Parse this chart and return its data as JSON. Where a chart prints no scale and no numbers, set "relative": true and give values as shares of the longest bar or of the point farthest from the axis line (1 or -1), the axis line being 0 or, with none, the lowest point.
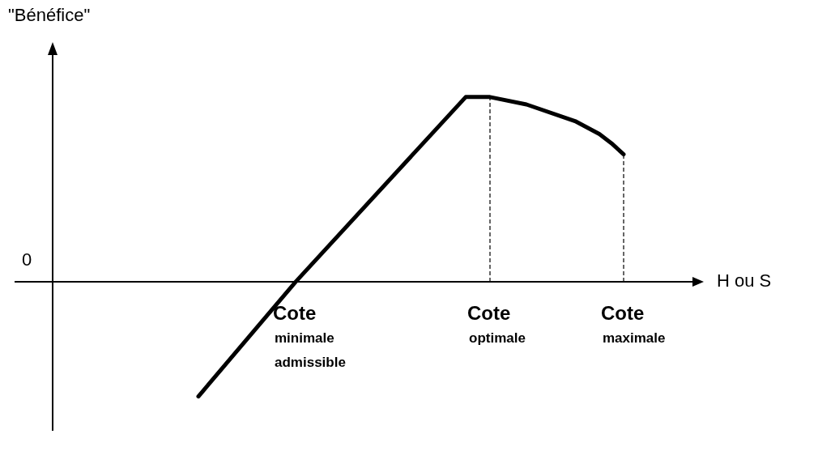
{
  "chart_data": {
    "type": "line",
    "relative": true,
    "ylabel": "\"Bénéfice\"",
    "xlabel": "H ou S",
    "categories": [
      null,
      null,
      null,
      null,
      null,
      null,
      null,
      null,
      null,
      null,
      null,
      null,
      null,
      null,
      null,
      null,
      null,
      null,
      null,
      null,
      null,
      null,
      null,
      null,
      null,
      null,
      null,
      null,
      null,
      null,
      null,
      null,
      null,
      null,
      null,
      null,
      null,
      null,
      null,
      null,
      null,
      null,
      null,
      null,
      null,
      null,
      null,
      null,
      null,
      null,
      null,
      null,
      null
    ],
    "series": [
      {
        "color": "#000000",
        "values": [
          null,
          null,
          null,
          null,
          null,
          null,
          null,
          null,
          null,
          null,
          null,
          null,
          -0.62,
          null,
          null,
          null,
          null,
          null,
          null,
          null,
          0,
          null,
          null,
          null,
          null,
          null,
          null,
          null,
          null,
          null,
          null,
          null,
          null,
          null,
          1,
          null,
          1,
          null,
          null,
          0.96,
          null,
          null,
          null,
          0.87,
          null,
          0.8,
          0.75,
          0.69,
          null,
          null,
          null,
          null,
          null
        ]
      }
    ],
    "annotations": [
      "0",
      "Cote minimale admissible",
      "Cote optimale",
      "Cote maximale"
    ],
    "legend": false,
    "marker": "none",
    "line_style": "solid"
  }
}
